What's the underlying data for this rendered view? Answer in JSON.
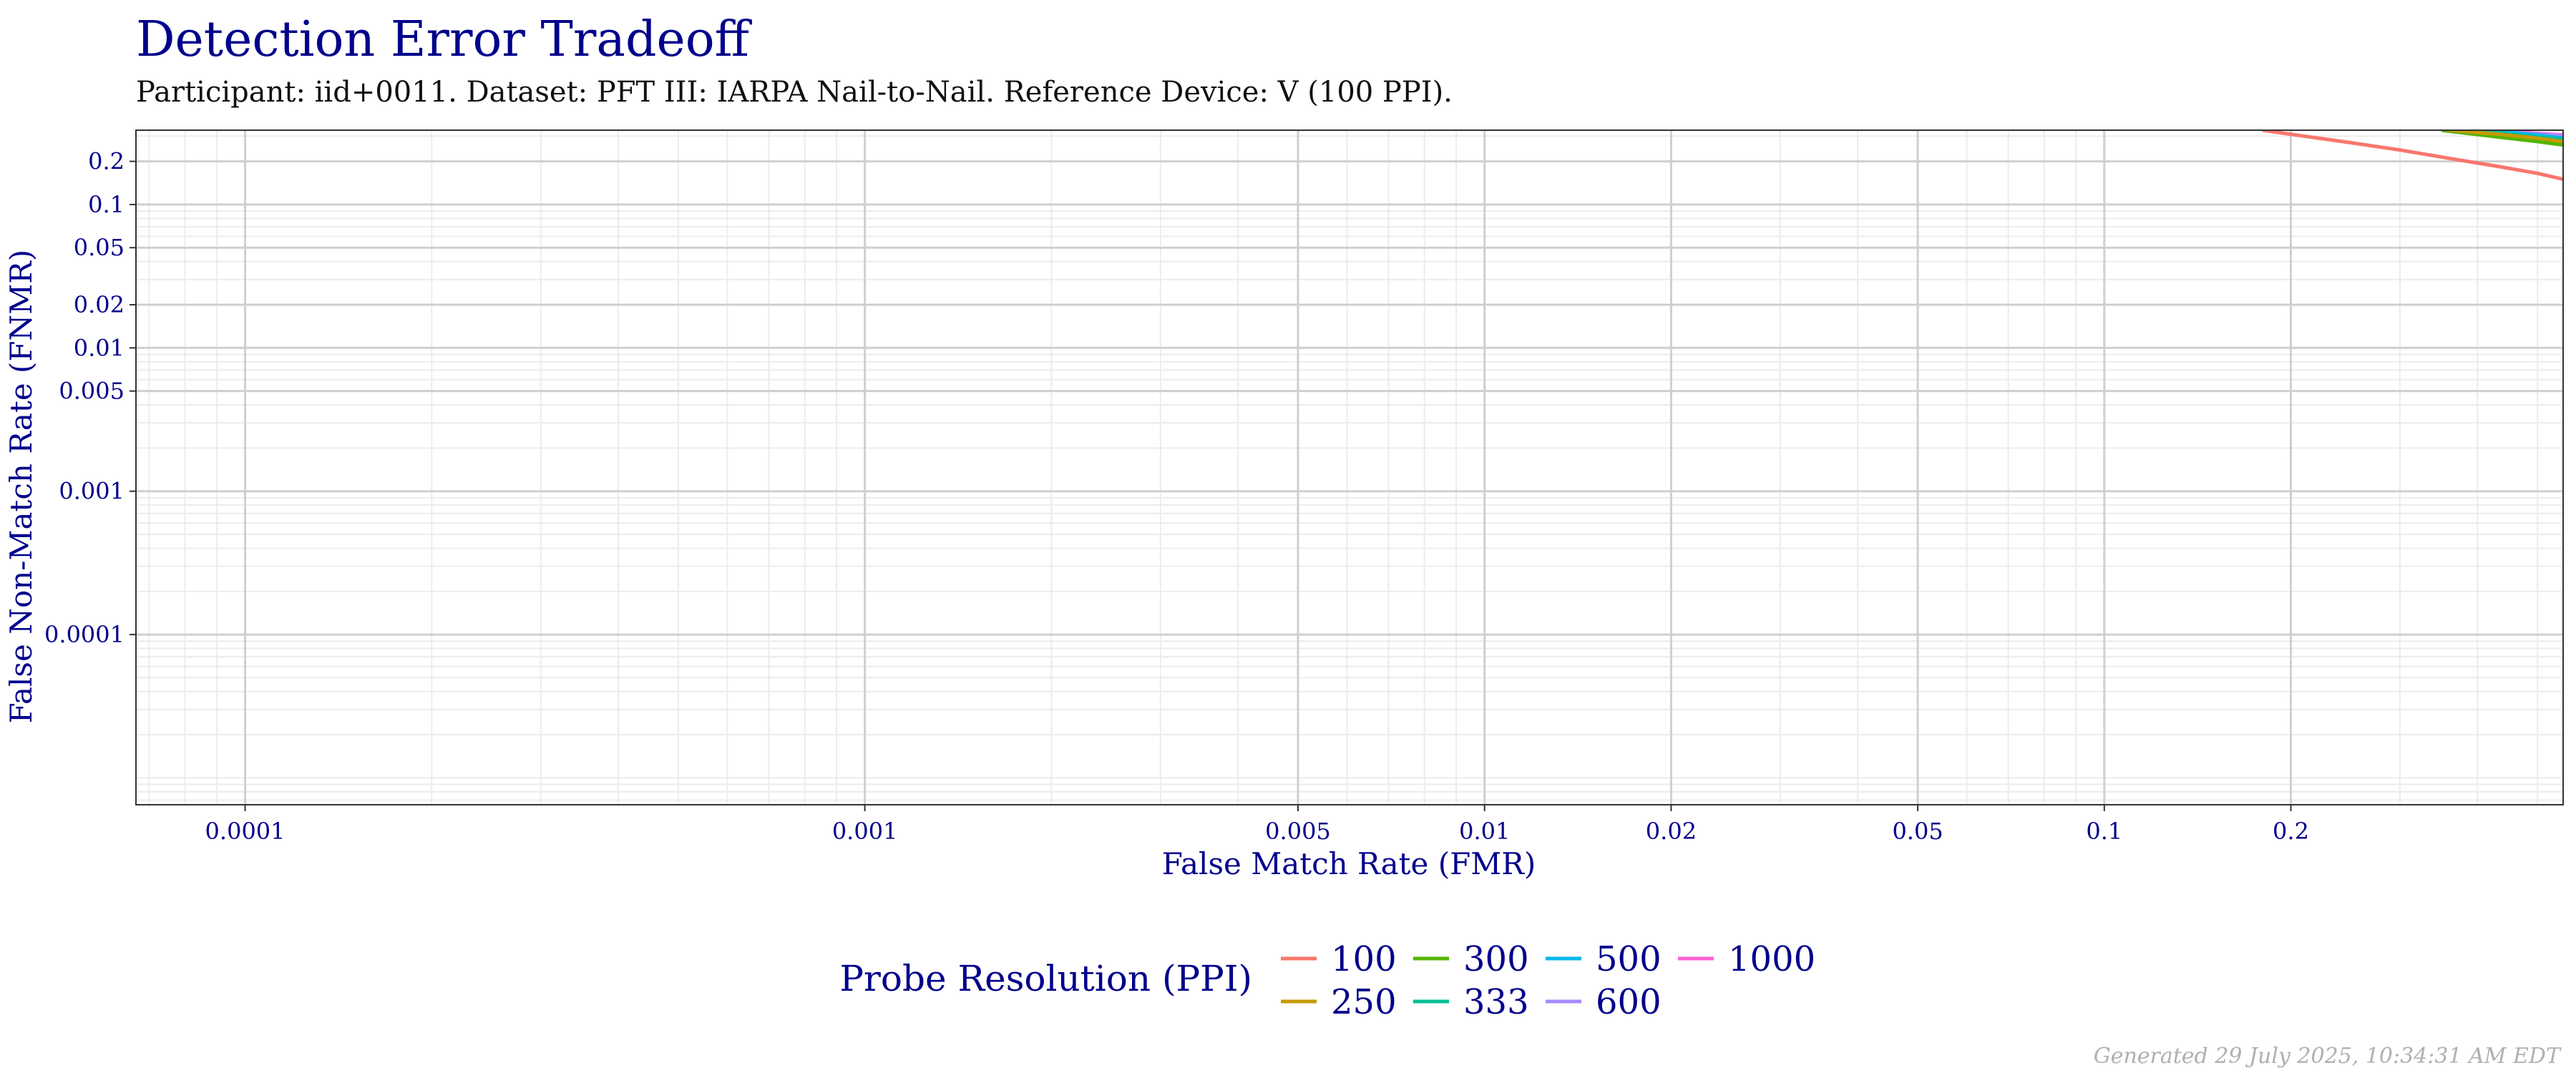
{
  "chart_data": {
    "type": "line",
    "title": "Detection Error Tradeoff",
    "subtitle": "Participant: iid+0011. Dataset: PFT III: IARPA Nail-to-Nail. Reference Device: V (100 PPI).",
    "xlabel": "False Match Rate (FMR)",
    "ylabel": "False Non-Match Rate (FNMR)",
    "x_scale": "log",
    "y_scale": "log",
    "xlim": [
      6.666e-05,
      0.55
    ],
    "ylim": [
      6.5e-06,
      0.33
    ],
    "x_ticks": [
      0.0001,
      0.001,
      0.005,
      0.01,
      0.02,
      0.05,
      0.1,
      0.2
    ],
    "x_tick_labels": [
      "0.0001",
      "0.001",
      "0.005",
      "0.01",
      "0.02",
      "0.05",
      "0.1",
      "0.2"
    ],
    "y_ticks": [
      0.2,
      0.1,
      0.05,
      0.02,
      0.01,
      0.005,
      0.001,
      0.0001
    ],
    "y_tick_labels": [
      "0.2",
      "0.1",
      "0.05",
      "0.02",
      "0.01",
      "0.005",
      "0.001",
      "0.0001"
    ],
    "grid": true,
    "legend_title": "Probe Resolution (PPI)",
    "legend_position": "bottom",
    "series": [
      {
        "name": "100",
        "color": "#F8766D",
        "x": [
          0.18,
          0.21,
          0.25,
          0.3,
          0.36,
          0.43,
          0.5,
          0.55
        ],
        "y": [
          0.33,
          0.3,
          0.27,
          0.24,
          0.21,
          0.185,
          0.165,
          0.15
        ]
      },
      {
        "name": "250",
        "color": "#C49A00",
        "x": [
          0.36,
          0.43,
          0.5,
          0.55
        ],
        "y": [
          0.33,
          0.31,
          0.29,
          0.275
        ]
      },
      {
        "name": "300",
        "color": "#53B400",
        "x": [
          0.35,
          0.42,
          0.5,
          0.55
        ],
        "y": [
          0.33,
          0.3,
          0.275,
          0.26
        ]
      },
      {
        "name": "333",
        "color": "#00C094",
        "x": [
          0.38,
          0.45,
          0.5,
          0.55
        ],
        "y": [
          0.33,
          0.31,
          0.295,
          0.285
        ]
      },
      {
        "name": "500",
        "color": "#00B6EB",
        "x": [
          0.4,
          0.46,
          0.5,
          0.55
        ],
        "y": [
          0.33,
          0.315,
          0.305,
          0.29
        ]
      },
      {
        "name": "600",
        "color": "#A58AFF",
        "x": [
          0.39,
          0.45,
          0.5,
          0.55
        ],
        "y": [
          0.33,
          0.32,
          0.31,
          0.3
        ]
      },
      {
        "name": "1000",
        "color": "#FB61D7",
        "x": [
          0.41,
          0.47,
          0.52,
          0.55
        ],
        "y": [
          0.33,
          0.32,
          0.31,
          0.305
        ]
      }
    ]
  },
  "footer": "Generated 29 July 2025, 10:34:31 AM EDT"
}
